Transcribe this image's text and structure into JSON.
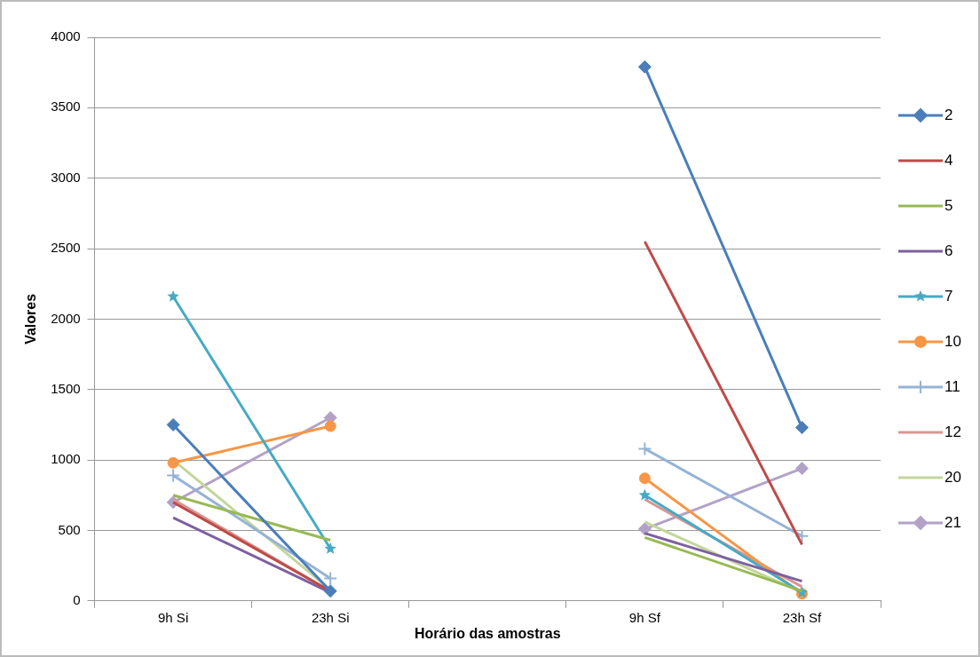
{
  "chart_data": {
    "type": "line",
    "xlabel": "Horário das amostras",
    "ylabel": "Valores",
    "categories": [
      "9h Si",
      "23h Si",
      null,
      "9h Sf",
      "23h Sf"
    ],
    "ylim": [
      0,
      4000
    ],
    "yticks": [
      0,
      500,
      1000,
      1500,
      2000,
      2500,
      3000,
      3500,
      4000
    ],
    "grid": "y",
    "legend": "right",
    "line_style": "solid",
    "series": [
      {
        "name": "2",
        "color": "#4a7ebb",
        "marker": "diamond",
        "values": [
          1250,
          70,
          null,
          3790,
          1230
        ]
      },
      {
        "name": "4",
        "color": "#be4b48",
        "marker": "none",
        "values": [
          700,
          70,
          null,
          2550,
          400
        ]
      },
      {
        "name": "5",
        "color": "#98b954",
        "marker": "none",
        "values": [
          750,
          430,
          null,
          450,
          70
        ]
      },
      {
        "name": "6",
        "color": "#7d60a0",
        "marker": "none",
        "values": [
          590,
          60,
          null,
          480,
          140
        ]
      },
      {
        "name": "7",
        "color": "#46aac5",
        "marker": "star",
        "values": [
          2160,
          370,
          null,
          750,
          60
        ]
      },
      {
        "name": "10",
        "color": "#f79646",
        "marker": "circle",
        "values": [
          980,
          1240,
          null,
          870,
          50
        ]
      },
      {
        "name": "11",
        "color": "#95b3d7",
        "marker": "cross",
        "values": [
          890,
          160,
          null,
          1080,
          460
        ]
      },
      {
        "name": "12",
        "color": "#d99694",
        "marker": "none",
        "values": [
          720,
          70,
          null,
          720,
          100
        ]
      },
      {
        "name": "20",
        "color": "#c3d69b",
        "marker": "none",
        "values": [
          1000,
          80,
          null,
          560,
          60
        ]
      },
      {
        "name": "21",
        "color": "#b3a2c7",
        "marker": "diamond",
        "values": [
          700,
          1300,
          null,
          510,
          940
        ]
      }
    ]
  }
}
